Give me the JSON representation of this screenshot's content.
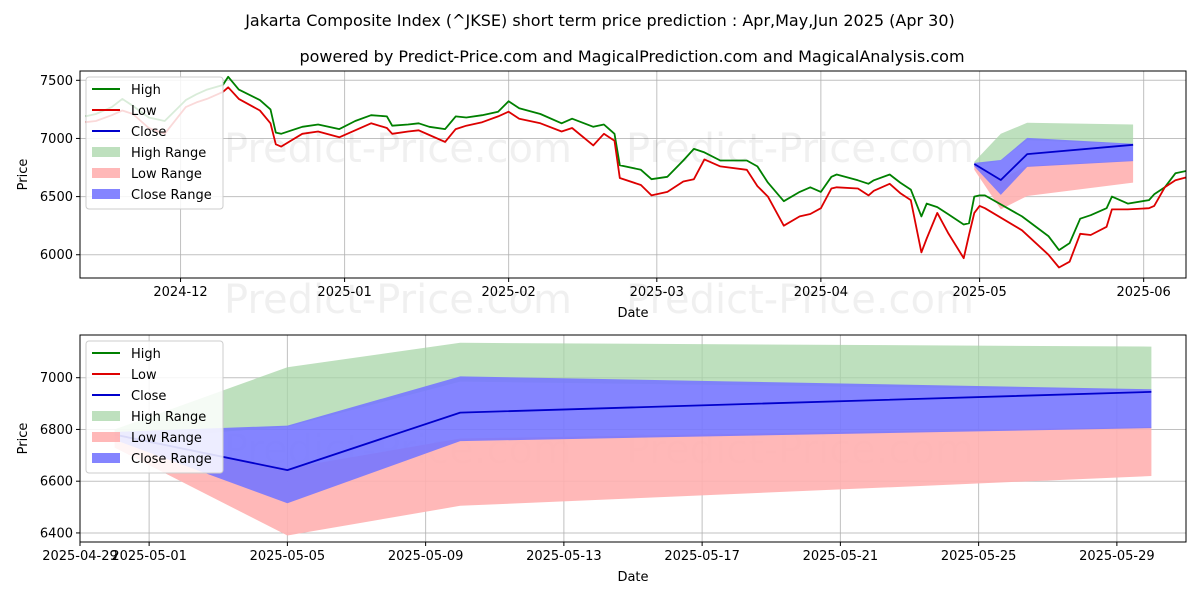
{
  "title": "Jakarta Composite Index (^JKSE) short term price prediction : Apr,May,Jun 2025 (Apr 30)",
  "subtitle": "powered by Predict-Price.com and MagicalPrediction.com and MagicalAnalysis.com",
  "watermark": "Predict-Price.com",
  "colors": {
    "high": "#008000",
    "low": "#dd0000",
    "close": "#0000cc",
    "high_range": "#a8d5a8",
    "low_range": "#ffb0b0",
    "close_range": "#7777ff"
  },
  "chart_data": [
    {
      "type": "line",
      "xlabel": "Date",
      "ylabel": "Price",
      "x_type": "date",
      "xlim": [
        "2024-11-12",
        "2025-06-09"
      ],
      "ylim": [
        5800,
        7580
      ],
      "yticks": [
        6000,
        6500,
        7000,
        7500
      ],
      "xticks": [
        {
          "date": "2024-12-01",
          "label": "2024-12"
        },
        {
          "date": "2025-01-01",
          "label": "2025-01"
        },
        {
          "date": "2025-02-01",
          "label": "2025-02"
        },
        {
          "date": "2025-03-01",
          "label": "2025-03"
        },
        {
          "date": "2025-04-01",
          "label": "2025-04"
        },
        {
          "date": "2025-05-01",
          "label": "2025-05"
        },
        {
          "date": "2025-06-01",
          "label": "2025-06"
        }
      ],
      "grid": true,
      "legend_position": "top-left",
      "legend": [
        "High",
        "Low",
        "Close",
        "High Range",
        "Low Range",
        "Close Range"
      ],
      "series": [
        {
          "name": "High",
          "points": [
            [
              "2024-11-13",
              7190
            ],
            [
              "2024-11-15",
              7210
            ],
            [
              "2024-11-18",
              7270
            ],
            [
              "2024-11-20",
              7340
            ],
            [
              "2024-11-22",
              7280
            ],
            [
              "2024-11-25",
              7180
            ],
            [
              "2024-11-28",
              7150
            ],
            [
              "2024-12-02",
              7330
            ],
            [
              "2024-12-04",
              7380
            ],
            [
              "2024-12-06",
              7420
            ],
            [
              "2024-12-09",
              7460
            ],
            [
              "2024-12-10",
              7530
            ],
            [
              "2024-12-12",
              7420
            ],
            [
              "2024-12-16",
              7330
            ],
            [
              "2024-12-18",
              7250
            ],
            [
              "2024-12-19",
              7050
            ],
            [
              "2024-12-20",
              7040
            ],
            [
              "2024-12-24",
              7100
            ],
            [
              "2024-12-27",
              7120
            ],
            [
              "2024-12-31",
              7080
            ],
            [
              "2025-01-03",
              7150
            ],
            [
              "2025-01-06",
              7200
            ],
            [
              "2025-01-09",
              7190
            ],
            [
              "2025-01-10",
              7110
            ],
            [
              "2025-01-13",
              7120
            ],
            [
              "2025-01-15",
              7130
            ],
            [
              "2025-01-17",
              7100
            ],
            [
              "2025-01-20",
              7080
            ],
            [
              "2025-01-22",
              7190
            ],
            [
              "2025-01-24",
              7180
            ],
            [
              "2025-01-27",
              7200
            ],
            [
              "2025-01-30",
              7230
            ],
            [
              "2025-02-01",
              7320
            ],
            [
              "2025-02-03",
              7260
            ],
            [
              "2025-02-07",
              7210
            ],
            [
              "2025-02-11",
              7130
            ],
            [
              "2025-02-13",
              7170
            ],
            [
              "2025-02-17",
              7100
            ],
            [
              "2025-02-19",
              7120
            ],
            [
              "2025-02-21",
              7040
            ],
            [
              "2025-02-22",
              6770
            ],
            [
              "2025-02-26",
              6730
            ],
            [
              "2025-02-28",
              6650
            ],
            [
              "2025-03-03",
              6670
            ],
            [
              "2025-03-06",
              6810
            ],
            [
              "2025-03-08",
              6910
            ],
            [
              "2025-03-10",
              6880
            ],
            [
              "2025-03-13",
              6810
            ],
            [
              "2025-03-18",
              6810
            ],
            [
              "2025-03-20",
              6760
            ],
            [
              "2025-03-22",
              6620
            ],
            [
              "2025-03-25",
              6460
            ],
            [
              "2025-03-28",
              6540
            ],
            [
              "2025-03-30",
              6580
            ],
            [
              "2025-04-01",
              6540
            ],
            [
              "2025-04-03",
              6670
            ],
            [
              "2025-04-04",
              6690
            ],
            [
              "2025-04-08",
              6640
            ],
            [
              "2025-04-10",
              6610
            ],
            [
              "2025-04-11",
              6640
            ],
            [
              "2025-04-14",
              6690
            ],
            [
              "2025-04-16",
              6620
            ],
            [
              "2025-04-18",
              6560
            ],
            [
              "2025-04-20",
              6330
            ],
            [
              "2025-04-21",
              6440
            ],
            [
              "2025-04-23",
              6410
            ],
            [
              "2025-04-25",
              6350
            ],
            [
              "2025-04-28",
              6260
            ],
            [
              "2025-04-29",
              6270
            ],
            [
              "2025-04-30",
              6500
            ],
            [
              "2025-05-01",
              6510
            ],
            [
              "2025-05-02",
              6510
            ],
            [
              "2025-05-09",
              6330
            ],
            [
              "2025-05-14",
              6160
            ],
            [
              "2025-05-16",
              6040
            ],
            [
              "2025-05-18",
              6100
            ],
            [
              "2025-05-20",
              6310
            ],
            [
              "2025-05-22",
              6340
            ],
            [
              "2025-05-25",
              6400
            ],
            [
              "2025-05-26",
              6500
            ],
            [
              "2025-05-29",
              6440
            ],
            [
              "2025-06-02",
              6470
            ],
            [
              "2025-06-03",
              6520
            ],
            [
              "2025-06-05",
              6580
            ],
            [
              "2025-06-07",
              6700
            ],
            [
              "2025-06-11",
              6740
            ],
            [
              "2025-06-16",
              6800
            ]
          ]
        },
        {
          "name": "Low",
          "points": [
            [
              "2024-11-13",
              7140
            ],
            [
              "2024-11-15",
              7150
            ],
            [
              "2024-11-18",
              7200
            ],
            [
              "2024-11-20",
              7240
            ],
            [
              "2024-11-22",
              7210
            ],
            [
              "2024-11-25",
              7090
            ],
            [
              "2024-11-28",
              7040
            ],
            [
              "2024-12-02",
              7270
            ],
            [
              "2024-12-04",
              7310
            ],
            [
              "2024-12-06",
              7340
            ],
            [
              "2024-12-09",
              7400
            ],
            [
              "2024-12-10",
              7440
            ],
            [
              "2024-12-12",
              7340
            ],
            [
              "2024-12-16",
              7240
            ],
            [
              "2024-12-18",
              7130
            ],
            [
              "2024-12-19",
              6950
            ],
            [
              "2024-12-20",
              6930
            ],
            [
              "2024-12-24",
              7040
            ],
            [
              "2024-12-27",
              7060
            ],
            [
              "2024-12-31",
              7010
            ],
            [
              "2025-01-03",
              7070
            ],
            [
              "2025-01-06",
              7130
            ],
            [
              "2025-01-09",
              7090
            ],
            [
              "2025-01-10",
              7040
            ],
            [
              "2025-01-13",
              7060
            ],
            [
              "2025-01-15",
              7070
            ],
            [
              "2025-01-17",
              7030
            ],
            [
              "2025-01-20",
              6970
            ],
            [
              "2025-01-22",
              7080
            ],
            [
              "2025-01-24",
              7110
            ],
            [
              "2025-01-27",
              7140
            ],
            [
              "2025-01-30",
              7190
            ],
            [
              "2025-02-01",
              7230
            ],
            [
              "2025-02-03",
              7170
            ],
            [
              "2025-02-07",
              7130
            ],
            [
              "2025-02-11",
              7060
            ],
            [
              "2025-02-13",
              7090
            ],
            [
              "2025-02-17",
              6940
            ],
            [
              "2025-02-19",
              7040
            ],
            [
              "2025-02-21",
              6980
            ],
            [
              "2025-02-22",
              6660
            ],
            [
              "2025-02-26",
              6600
            ],
            [
              "2025-02-28",
              6510
            ],
            [
              "2025-03-03",
              6540
            ],
            [
              "2025-03-06",
              6630
            ],
            [
              "2025-03-08",
              6650
            ],
            [
              "2025-03-10",
              6820
            ],
            [
              "2025-03-13",
              6760
            ],
            [
              "2025-03-18",
              6730
            ],
            [
              "2025-03-20",
              6590
            ],
            [
              "2025-03-22",
              6500
            ],
            [
              "2025-03-25",
              6250
            ],
            [
              "2025-03-28",
              6330
            ],
            [
              "2025-03-30",
              6350
            ],
            [
              "2025-04-01",
              6400
            ],
            [
              "2025-04-03",
              6570
            ],
            [
              "2025-04-04",
              6580
            ],
            [
              "2025-04-08",
              6570
            ],
            [
              "2025-04-10",
              6510
            ],
            [
              "2025-04-11",
              6550
            ],
            [
              "2025-04-14",
              6610
            ],
            [
              "2025-04-16",
              6530
            ],
            [
              "2025-04-18",
              6470
            ],
            [
              "2025-04-20",
              6020
            ],
            [
              "2025-04-21",
              6140
            ],
            [
              "2025-04-23",
              6360
            ],
            [
              "2025-04-25",
              6190
            ],
            [
              "2025-04-28",
              5970
            ],
            [
              "2025-04-29",
              6170
            ],
            [
              "2025-04-30",
              6360
            ],
            [
              "2025-05-01",
              6420
            ],
            [
              "2025-05-02",
              6400
            ],
            [
              "2025-05-09",
              6210
            ],
            [
              "2025-05-14",
              6000
            ],
            [
              "2025-05-16",
              5890
            ],
            [
              "2025-05-18",
              5940
            ],
            [
              "2025-05-20",
              6180
            ],
            [
              "2025-05-22",
              6170
            ],
            [
              "2025-05-25",
              6240
            ],
            [
              "2025-05-26",
              6390
            ],
            [
              "2025-05-29",
              6390
            ],
            [
              "2025-06-02",
              6400
            ],
            [
              "2025-06-03",
              6420
            ],
            [
              "2025-06-05",
              6580
            ],
            [
              "2025-06-07",
              6640
            ],
            [
              "2025-06-11",
              6690
            ],
            [
              "2025-06-16",
              6730
            ]
          ]
        }
      ],
      "forecast": {
        "dates": [
          "2025-04-30",
          "2025-05-05",
          "2025-05-10",
          "2025-05-30"
        ],
        "close": [
          6780,
          6643,
          6865,
          6945
        ],
        "high_range": {
          "upper": [
            6800,
            7040,
            7135,
            7120
          ],
          "lower": [
            6760,
            6810,
            6985,
            6950
          ]
        },
        "low_range": {
          "upper": [
            6780,
            6650,
            6765,
            6810
          ],
          "lower": [
            6730,
            6390,
            6505,
            6620
          ]
        },
        "close_range": {
          "upper": [
            6790,
            6815,
            7005,
            6955
          ],
          "lower": [
            6760,
            6515,
            6755,
            6805
          ]
        }
      }
    },
    {
      "type": "line",
      "xlabel": "Date",
      "ylabel": "Price",
      "x_type": "date",
      "xlim": [
        "2025-04-29",
        "2025-05-31"
      ],
      "ylim": [
        6365,
        7165
      ],
      "yticks": [
        6400,
        6600,
        6800,
        7000
      ],
      "xticks": [
        {
          "date": "2025-04-29",
          "label": "2025-04-29"
        },
        {
          "date": "2025-05-01",
          "label": "2025-05-01"
        },
        {
          "date": "2025-05-05",
          "label": "2025-05-05"
        },
        {
          "date": "2025-05-09",
          "label": "2025-05-09"
        },
        {
          "date": "2025-05-13",
          "label": "2025-05-13"
        },
        {
          "date": "2025-05-17",
          "label": "2025-05-17"
        },
        {
          "date": "2025-05-21",
          "label": "2025-05-21"
        },
        {
          "date": "2025-05-25",
          "label": "2025-05-25"
        },
        {
          "date": "2025-05-29",
          "label": "2025-05-29"
        }
      ],
      "grid": true,
      "legend_position": "top-left",
      "legend": [
        "High",
        "Low",
        "Close",
        "High Range",
        "Low Range",
        "Close Range"
      ],
      "series": [],
      "forecast": {
        "dates": [
          "2025-04-30",
          "2025-05-05",
          "2025-05-10",
          "2025-05-30"
        ],
        "close": [
          6780,
          6643,
          6865,
          6945
        ],
        "high_range": {
          "upper": [
            6800,
            7040,
            7135,
            7120
          ],
          "lower": [
            6760,
            6810,
            6985,
            6950
          ]
        },
        "low_range": {
          "upper": [
            6780,
            6650,
            6765,
            6810
          ],
          "lower": [
            6730,
            6390,
            6505,
            6620
          ]
        },
        "close_range": {
          "upper": [
            6790,
            6815,
            7005,
            6955
          ],
          "lower": [
            6760,
            6515,
            6755,
            6805
          ]
        }
      }
    }
  ]
}
